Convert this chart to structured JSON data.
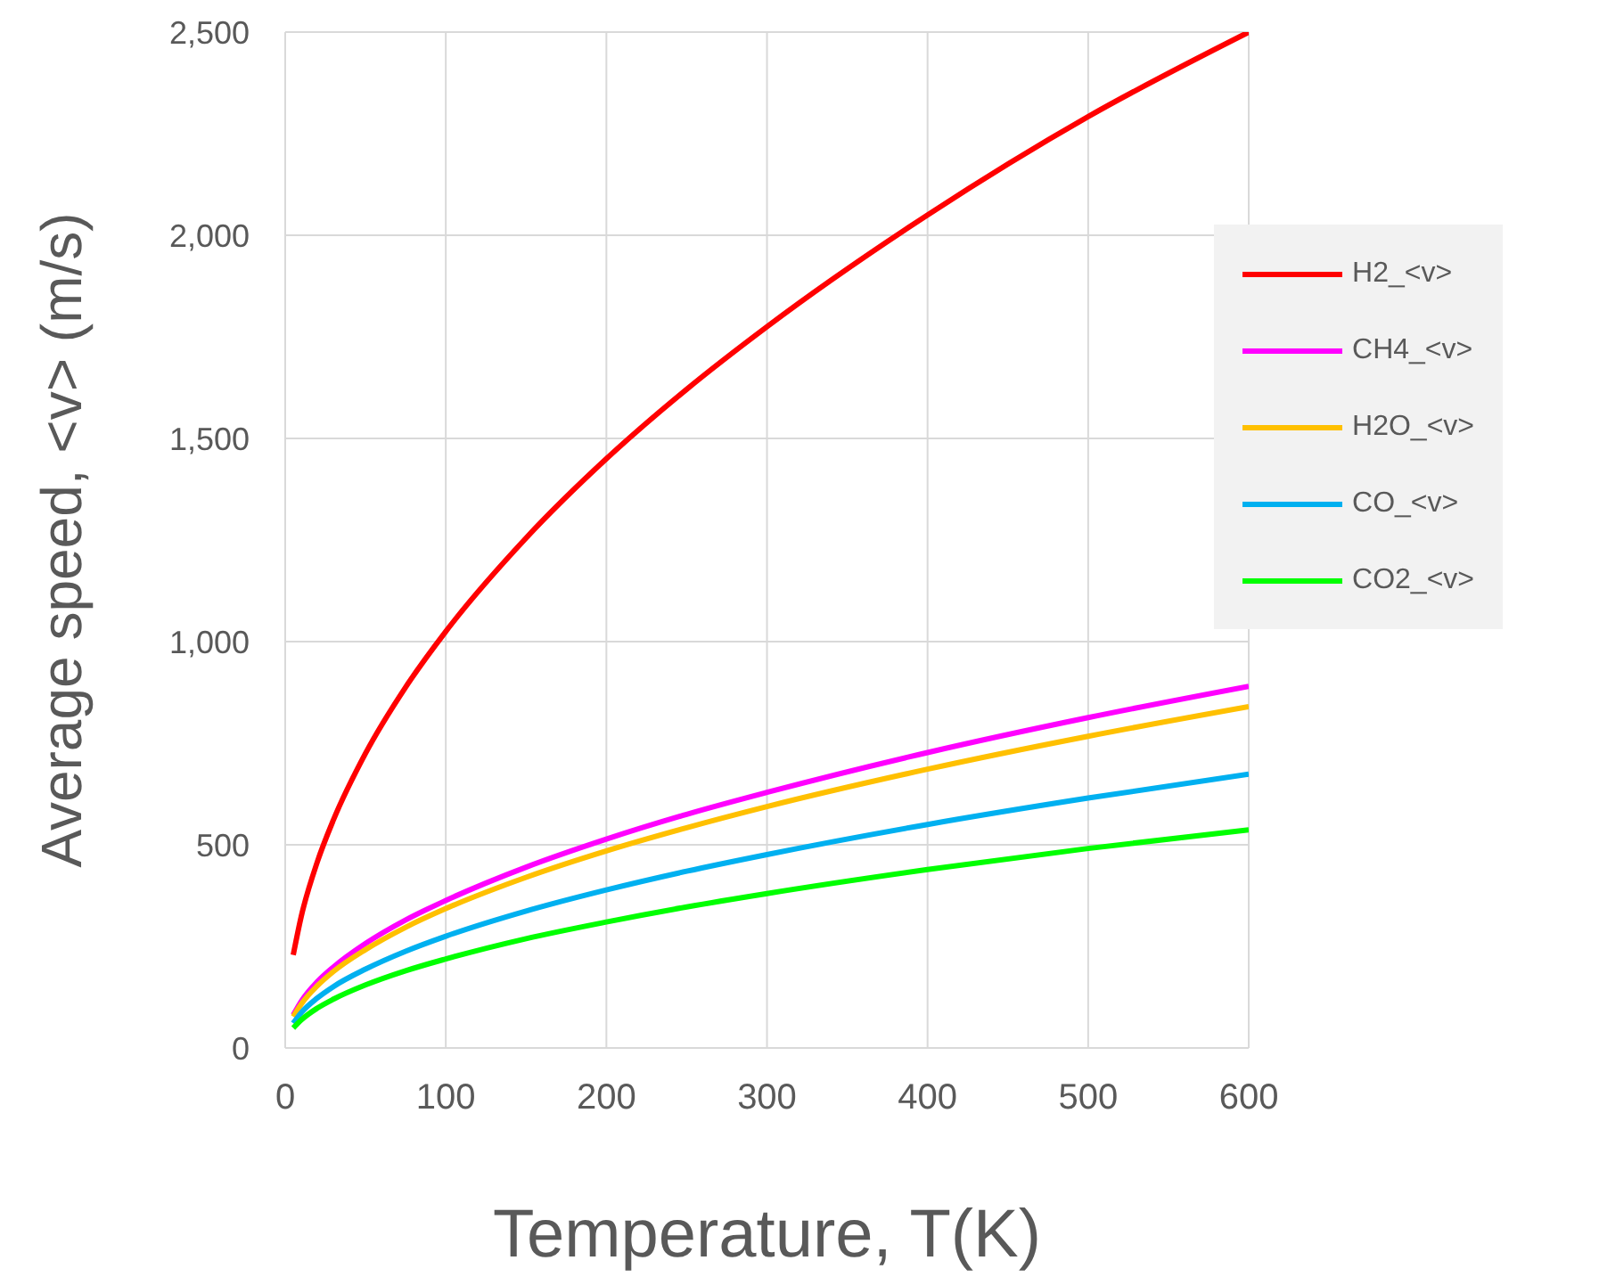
{
  "chart_data": {
    "type": "line",
    "xlabel": "Temperature, T(K)",
    "ylabel": "Average speed, <v> (m/s)",
    "x": [
      5,
      10,
      20,
      30,
      50,
      75,
      100,
      150,
      200,
      250,
      300,
      400,
      500,
      600
    ],
    "series": [
      {
        "name": "H2_<v>",
        "color": "#ff0000",
        "values": [
          229,
          324,
          458,
          561,
          725,
          888,
          1025,
          1255,
          1450,
          1621,
          1775,
          2050,
          2292,
          2500
        ]
      },
      {
        "name": "CH4_<v>",
        "color": "#ff00ff",
        "values": [
          81,
          115,
          163,
          199,
          257,
          315,
          363,
          445,
          514,
          575,
          629,
          727,
          813,
          890
        ]
      },
      {
        "name": "H2O_<v>",
        "color": "#ffc000",
        "values": [
          77,
          108,
          153,
          188,
          242,
          297,
          343,
          420,
          485,
          542,
          594,
          686,
          767,
          840
        ]
      },
      {
        "name": "CO_<v>",
        "color": "#00b0f0",
        "values": [
          61,
          87,
          123,
          151,
          194,
          238,
          275,
          337,
          389,
          435,
          476,
          550,
          615,
          674
        ]
      },
      {
        "name": "CO2_<v>",
        "color": "#00ff00",
        "values": [
          49,
          69,
          98,
          120,
          155,
          190,
          219,
          269,
          310,
          347,
          380,
          439,
          491,
          537
        ]
      }
    ],
    "xlim": [
      0,
      600
    ],
    "xticks": [
      0,
      100,
      200,
      300,
      400,
      500,
      600
    ],
    "ylim": [
      0,
      2500
    ],
    "yticks": [
      0,
      {
        "value": 500,
        "label": "500"
      },
      {
        "value": 1000,
        "label": "1,000"
      },
      {
        "value": 1500,
        "label": "1,500"
      },
      {
        "value": 2000,
        "label": "2,000"
      },
      {
        "value": 2500,
        "label": "2,500"
      }
    ],
    "grid": true,
    "legend": "top right",
    "marker": "none",
    "line_style": "solid"
  }
}
